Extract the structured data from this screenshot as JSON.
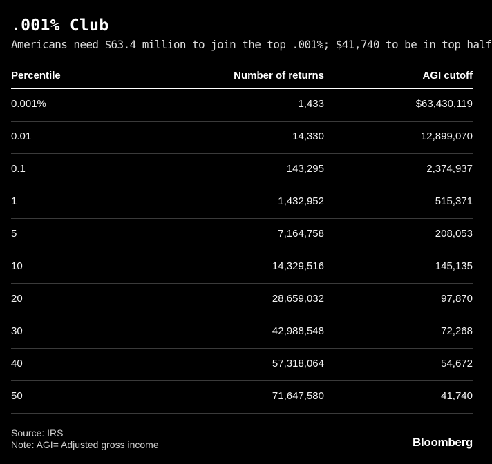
{
  "title": ".001% Club",
  "subtitle": "Americans need $63.4 million to join the top .001%; $41,740 to be in top half",
  "footer": {
    "source": "Source: IRS",
    "note": "Note: AGI= Adjusted gross income",
    "brand": "Bloomberg"
  },
  "chart_data": {
    "type": "table",
    "title": ".001% Club",
    "subtitle": "Americans need $63.4 million to join the top .001%; $41,740 to be in top half",
    "columns": [
      "Percentile",
      "Number of returns",
      "AGI cutoff"
    ],
    "rows": [
      [
        "0.001%",
        "1,433",
        "$63,430,119"
      ],
      [
        "0.01",
        "14,330",
        "12,899,070"
      ],
      [
        "0.1",
        "143,295",
        "2,374,937"
      ],
      [
        "1",
        "1,432,952",
        "515,371"
      ],
      [
        "5",
        "7,164,758",
        "208,053"
      ],
      [
        "10",
        "14,329,516",
        "145,135"
      ],
      [
        "20",
        "28,659,032",
        "97,870"
      ],
      [
        "30",
        "42,988,548",
        "72,268"
      ],
      [
        "40",
        "57,318,064",
        "54,672"
      ],
      [
        "50",
        "71,647,580",
        "41,740"
      ]
    ]
  }
}
